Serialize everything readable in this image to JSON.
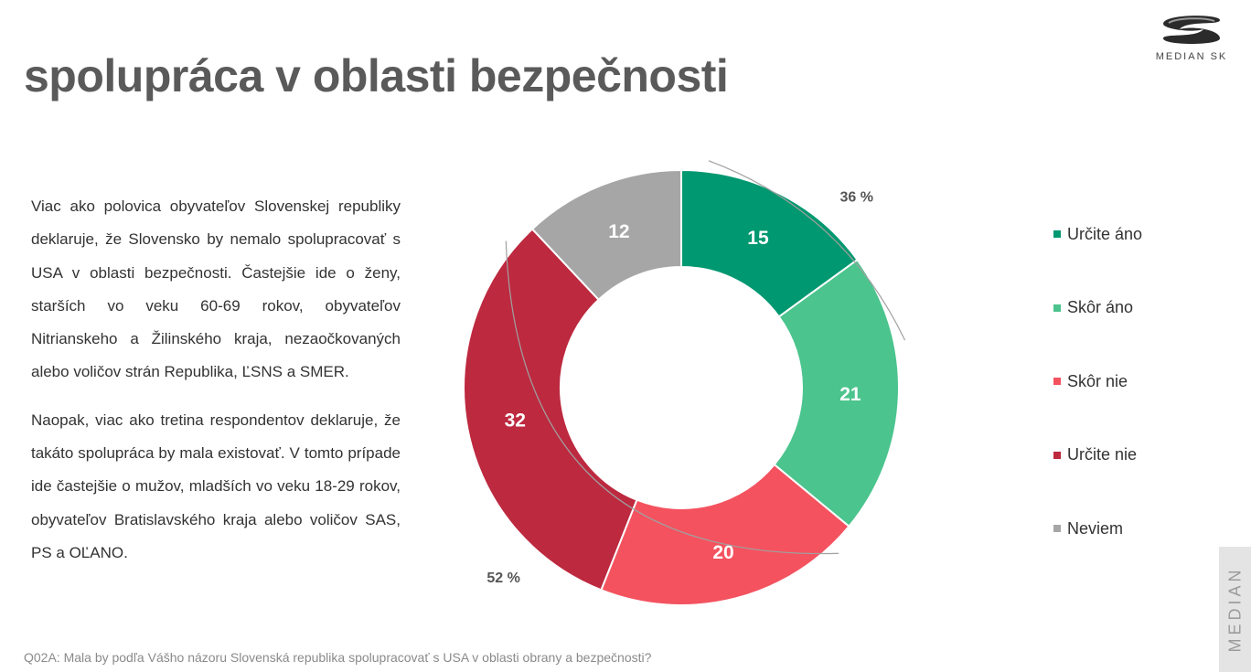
{
  "title": "spolupráca v oblasti bezpečnosti",
  "logo": {
    "text": "MEDIAN SK"
  },
  "paragraphs": [
    "Viac ako polovica obyvateľov Slovenskej republiky deklaruje, že Slovensko by nemalo spolupracovať s USA v oblasti bezpečnosti. Častejšie ide o ženy, starších vo veku 60-69 rokov, obyvateľov Nitrianskeho a Žilinského kraja, nezaočkovaných alebo voličov strán Republika, ĽSNS a SMER.",
    "Naopak, viac ako tretina respondentov deklaruje, že takáto spolupráca by mala existovať. V tomto prípade ide častejšie o mužov, mladších vo veku 18-29 rokov, obyvateľov Bratislavského kraja alebo voličov SAS, PS a OĽANO."
  ],
  "footnote": "Q02A: Mala by podľa Vášho názoru Slovenská republika spolupracovať s USA v oblasti obrany a bezpečnosti?",
  "side_tab": "MEDIAN",
  "chart_data": {
    "type": "pie",
    "donut": true,
    "categories": [
      "Určite áno",
      "Skôr áno",
      "Skôr nie",
      "Určite nie",
      "Neviem"
    ],
    "values": [
      15,
      21,
      20,
      32,
      12
    ],
    "colors": [
      "#009870",
      "#4bc48d",
      "#f4525f",
      "#bd293f",
      "#a6a6a6"
    ],
    "legend_position": "right",
    "annotations": [
      {
        "text": "36 %",
        "covers": [
          "Určite áno",
          "Skôr áno"
        ]
      },
      {
        "text": "52 %",
        "covers": [
          "Skôr nie",
          "Určite nie"
        ]
      }
    ]
  }
}
